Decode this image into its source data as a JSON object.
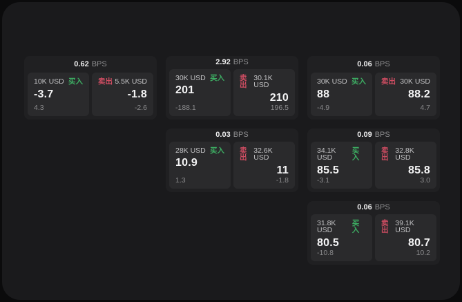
{
  "labels": {
    "bps_unit": "BPS",
    "buy": "买入",
    "sell": "卖出"
  },
  "colors": {
    "buy_green": "#3dae63",
    "sell_red": "#cf4d62",
    "outer_bg": "#0b0b0c",
    "window_bg": "#1a1a1c",
    "card_bg": "#202022",
    "panel_bg": "#2a2a2c"
  },
  "cards": [
    {
      "bps": "0.62",
      "buy": {
        "amount": "10K USD",
        "price": "-3.7",
        "change": "4.3"
      },
      "sell": {
        "amount": "5.5K USD",
        "price": "-1.8",
        "change": "-2.6"
      }
    },
    {
      "bps": "2.92",
      "buy": {
        "amount": "30K USD",
        "price": "201",
        "change": "-188.1"
      },
      "sell": {
        "amount": "30.1K USD",
        "price": "210",
        "change": "196.5"
      }
    },
    {
      "bps": "0.06",
      "buy": {
        "amount": "30K USD",
        "price": "88",
        "change": "-4.9"
      },
      "sell": {
        "amount": "30K USD",
        "price": "88.2",
        "change": "4.7"
      }
    },
    {
      "bps": "0.03",
      "buy": {
        "amount": "28K USD",
        "price": "10.9",
        "change": "1.3"
      },
      "sell": {
        "amount": "32.6K USD",
        "price": "11",
        "change": "-1.8"
      }
    },
    {
      "bps": "0.09",
      "buy": {
        "amount": "34.1K USD",
        "price": "85.5",
        "change": "-3.1"
      },
      "sell": {
        "amount": "32.8K USD",
        "price": "85.8",
        "change": "3.0"
      }
    },
    {
      "bps": "0.06",
      "buy": {
        "amount": "31.8K USD",
        "price": "80.5",
        "change": "-10.8"
      },
      "sell": {
        "amount": "39.1K USD",
        "price": "80.7",
        "change": "10.2"
      }
    }
  ]
}
